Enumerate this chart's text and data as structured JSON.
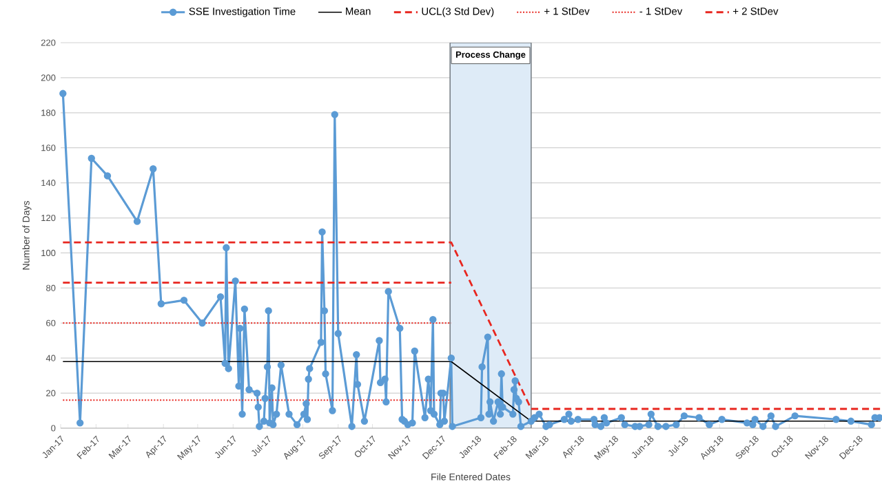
{
  "chart_data": {
    "type": "line",
    "xlabel": "File Entered Dates",
    "ylabel": "Number of Days",
    "xlim": [
      "2017-01-01",
      "2018-12-20"
    ],
    "ylim": [
      0,
      220
    ],
    "yticks": [
      0,
      20,
      40,
      60,
      80,
      100,
      120,
      140,
      160,
      180,
      200,
      220
    ],
    "xticks": [
      {
        "value": "2017-01-01",
        "label": "Jan-17"
      },
      {
        "value": "2017-02-01",
        "label": "Feb-17"
      },
      {
        "value": "2017-03-01",
        "label": "Mar-17"
      },
      {
        "value": "2017-04-01",
        "label": "Apr-17"
      },
      {
        "value": "2017-05-01",
        "label": "May-17"
      },
      {
        "value": "2017-06-01",
        "label": "Jun-17"
      },
      {
        "value": "2017-07-01",
        "label": "Jul-17"
      },
      {
        "value": "2017-08-01",
        "label": "Aug-17"
      },
      {
        "value": "2017-09-01",
        "label": "Sep-17"
      },
      {
        "value": "2017-10-01",
        "label": "Oct-17"
      },
      {
        "value": "2017-11-01",
        "label": "Nov-17"
      },
      {
        "value": "2017-12-01",
        "label": "Dec-17"
      },
      {
        "value": "2018-01-01",
        "label": "Jan-18"
      },
      {
        "value": "2018-02-01",
        "label": "Feb-18"
      },
      {
        "value": "2018-03-01",
        "label": "Mar-18"
      },
      {
        "value": "2018-04-01",
        "label": "Apr-18"
      },
      {
        "value": "2018-05-01",
        "label": "May-18"
      },
      {
        "value": "2018-06-01",
        "label": "Jun-18"
      },
      {
        "value": "2018-07-01",
        "label": "Jul-18"
      },
      {
        "value": "2018-08-01",
        "label": "Aug-18"
      },
      {
        "value": "2018-09-01",
        "label": "Sep-18"
      },
      {
        "value": "2018-10-01",
        "label": "Oct-18"
      },
      {
        "value": "2018-11-01",
        "label": "Nov-18"
      },
      {
        "value": "2018-12-01",
        "label": "Dec-18"
      }
    ],
    "grid": "y",
    "legend": "top",
    "bands": [
      {
        "axis": "x",
        "from": "2017-12-08",
        "to": "2018-02-17",
        "label": "Process Change",
        "color": "#deebf7"
      }
    ],
    "series": [
      {
        "name": "SSE Investigation Time",
        "color": "#5b9bd5",
        "marker": "circle",
        "line_style": "solid",
        "x": [
          "2017-01-03",
          "2017-01-18",
          "2017-01-28",
          "2017-02-11",
          "2017-03-09",
          "2017-03-23",
          "2017-03-30",
          "2017-04-19",
          "2017-05-05",
          "2017-05-21",
          "2017-05-25",
          "2017-05-26",
          "2017-05-28",
          "2017-06-03",
          "2017-06-06",
          "2017-06-07",
          "2017-06-09",
          "2017-06-11",
          "2017-06-15",
          "2017-06-22",
          "2017-06-23",
          "2017-06-24",
          "2017-06-28",
          "2017-06-29",
          "2017-07-01",
          "2017-07-02",
          "2017-07-03",
          "2017-07-05",
          "2017-07-06",
          "2017-07-09",
          "2017-07-13",
          "2017-07-20",
          "2017-07-27",
          "2017-08-02",
          "2017-08-04",
          "2017-08-05",
          "2017-08-06",
          "2017-08-07",
          "2017-08-17",
          "2017-08-18",
          "2017-08-20",
          "2017-08-21",
          "2017-08-27",
          "2017-08-29",
          "2017-09-01",
          "2017-09-13",
          "2017-09-17",
          "2017-09-18",
          "2017-09-24",
          "2017-10-07",
          "2017-10-08",
          "2017-10-12",
          "2017-10-13",
          "2017-10-15",
          "2017-10-25",
          "2017-10-27",
          "2017-10-29",
          "2017-11-01",
          "2017-11-05",
          "2017-11-07",
          "2017-11-16",
          "2017-11-19",
          "2017-11-21",
          "2017-11-23",
          "2017-11-24",
          "2017-11-29",
          "2017-11-30",
          "2017-12-02",
          "2017-12-03",
          "2017-12-09",
          "2017-12-10",
          "2018-01-04",
          "2018-01-05",
          "2018-01-10",
          "2018-01-11",
          "2018-01-12",
          "2018-01-15",
          "2018-01-19",
          "2018-01-21",
          "2018-01-22",
          "2018-01-23",
          "2018-02-01",
          "2018-02-02",
          "2018-02-03",
          "2018-02-04",
          "2018-02-06",
          "2018-02-08",
          "2018-02-17",
          "2018-02-20",
          "2018-02-24",
          "2018-03-02",
          "2018-03-05",
          "2018-03-18",
          "2018-03-22",
          "2018-03-24",
          "2018-03-30",
          "2018-04-13",
          "2018-04-14",
          "2018-04-19",
          "2018-04-22",
          "2018-04-24",
          "2018-05-07",
          "2018-05-10",
          "2018-05-19",
          "2018-05-23",
          "2018-05-31",
          "2018-06-02",
          "2018-06-08",
          "2018-06-15",
          "2018-06-24",
          "2018-07-01",
          "2018-07-14",
          "2018-07-23",
          "2018-08-03",
          "2018-08-25",
          "2018-08-30",
          "2018-09-01",
          "2018-09-08",
          "2018-09-15",
          "2018-09-19",
          "2018-10-06",
          "2018-11-11",
          "2018-11-24",
          "2018-12-12",
          "2018-12-15",
          "2018-12-19"
        ],
        "values": [
          191,
          3,
          154,
          144,
          118,
          148,
          71,
          73,
          60,
          75,
          37,
          103,
          34,
          84,
          24,
          57,
          8,
          68,
          22,
          20,
          12,
          1,
          4,
          17,
          35,
          67,
          3,
          23,
          2,
          8,
          36,
          8,
          2,
          8,
          14,
          5,
          28,
          34,
          49,
          112,
          67,
          31,
          10,
          179,
          54,
          1,
          42,
          25,
          4,
          50,
          26,
          28,
          15,
          78,
          57,
          5,
          4,
          2,
          3,
          44,
          6,
          28,
          10,
          62,
          8,
          2,
          20,
          20,
          4,
          40,
          1,
          6,
          35,
          52,
          8,
          15,
          4,
          15,
          8,
          31,
          12,
          8,
          22,
          27,
          17,
          15,
          1,
          4,
          6,
          8,
          1,
          2,
          5,
          8,
          4,
          5,
          5,
          2,
          1,
          6,
          3,
          6,
          2,
          1,
          1,
          2,
          8,
          1,
          1,
          2,
          7,
          6,
          2,
          5,
          3,
          2,
          5,
          1,
          7,
          1,
          7,
          5,
          4,
          2,
          6,
          6
        ]
      },
      {
        "name": "Mean",
        "color": "#000000",
        "marker": "none",
        "line_style": "solid",
        "x": [
          "2017-01-03",
          "2017-12-09",
          "2018-02-17",
          "2018-12-20"
        ],
        "values": [
          38,
          38,
          4,
          4
        ]
      },
      {
        "name": "UCL(3 Std Dev)",
        "color": "#e8261f",
        "marker": "none",
        "line_style": "dashed",
        "x": [
          "2017-01-03",
          "2017-12-09",
          "2018-02-17",
          "2018-12-20"
        ],
        "values": [
          106,
          106,
          11,
          11
        ]
      },
      {
        "name": "+ 1 StDev",
        "color": "#e8261f",
        "marker": "none",
        "line_style": "dotted",
        "x": [
          "2017-01-03",
          "2017-12-09"
        ],
        "values": [
          60,
          60
        ]
      },
      {
        "name": "- 1 StDev",
        "color": "#e8261f",
        "marker": "none",
        "line_style": "dotted",
        "x": [
          "2017-01-03",
          "2017-12-09"
        ],
        "values": [
          16,
          16
        ]
      },
      {
        "name": "+ 2 StDev",
        "color": "#e8261f",
        "marker": "none",
        "line_style": "dashed",
        "x": [
          "2017-01-03",
          "2017-12-09"
        ],
        "values": [
          83,
          83
        ]
      }
    ]
  }
}
